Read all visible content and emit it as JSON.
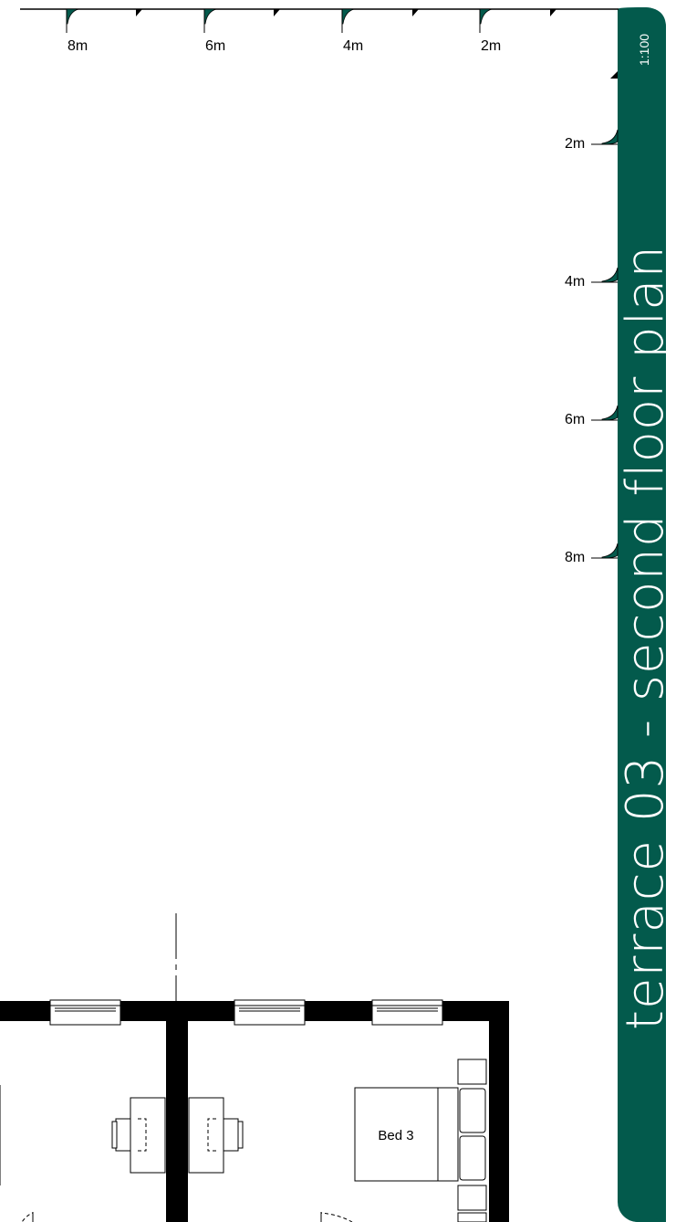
{
  "title_band": {
    "title": "terrace 03 - second floor plan",
    "scale": "1:100",
    "color": "#035a4c"
  },
  "scale_bars": {
    "horizontal": [
      "8m",
      "6m",
      "4m",
      "2m"
    ],
    "vertical": [
      "2m",
      "4m",
      "6m",
      "8m"
    ]
  },
  "rooms": [
    {
      "label": "Bed 3"
    }
  ],
  "colors": {
    "accent": "#035a4c",
    "wall": "#000000",
    "background": "#ffffff"
  }
}
